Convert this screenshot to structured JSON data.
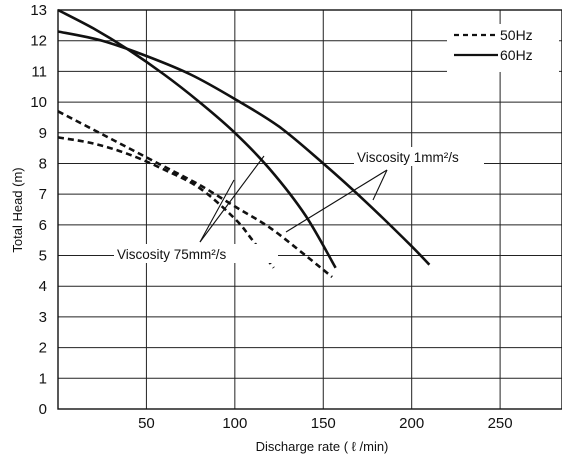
{
  "chart_data": {
    "type": "line",
    "xlabel": "Discharge rate ( ℓ /min)",
    "ylabel": "Total Head (m)",
    "xlim": [
      0,
      285
    ],
    "ylim": [
      0,
      13
    ],
    "x_ticks": [
      "50",
      "100",
      "150",
      "200",
      "250"
    ],
    "y_ticks": [
      "0",
      "1",
      "2",
      "3",
      "4",
      "5",
      "6",
      "7",
      "8",
      "9",
      "10",
      "11",
      "12",
      "13"
    ],
    "grid": true,
    "legend": {
      "position": "top-right",
      "entries": [
        {
          "label": "50Hz",
          "style": "dashed"
        },
        {
          "label": "60Hz",
          "style": "solid"
        }
      ]
    },
    "annotations": [
      {
        "text": "Viscosity 1mm²/s"
      },
      {
        "text": "Viscosity 75mm²/s"
      }
    ],
    "series": [
      {
        "style": "dashed",
        "x": [
          0,
          20,
          40,
          60,
          80,
          100,
          120,
          140,
          155
        ],
        "y": [
          9.7,
          9.1,
          8.5,
          7.9,
          7.3,
          6.6,
          5.9,
          5.0,
          4.3
        ]
      },
      {
        "style": "solid",
        "x": [
          0,
          25,
          50,
          75,
          100,
          125,
          150,
          175,
          200,
          210
        ],
        "y": [
          12.3,
          12.0,
          11.5,
          10.9,
          10.1,
          9.2,
          8.0,
          6.7,
          5.3,
          4.7
        ]
      },
      {
        "style": "dashed",
        "x": [
          0,
          20,
          40,
          60,
          80,
          100,
          110,
          122
        ],
        "y": [
          8.85,
          8.65,
          8.3,
          7.8,
          7.2,
          6.2,
          5.5,
          4.6
        ]
      },
      {
        "style": "solid",
        "x": [
          0,
          20,
          40,
          60,
          80,
          100,
          120,
          140,
          157
        ],
        "y": [
          13.0,
          12.4,
          11.7,
          10.9,
          10.0,
          9.0,
          7.8,
          6.3,
          4.6
        ]
      }
    ]
  }
}
